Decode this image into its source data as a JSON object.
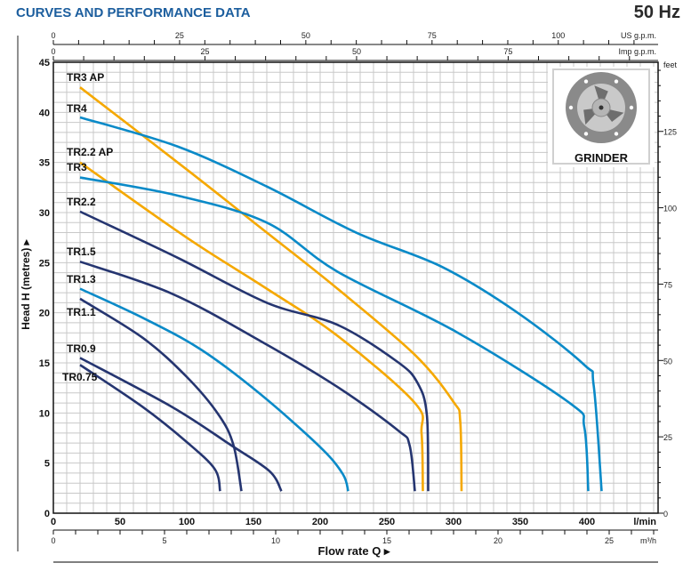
{
  "header": {
    "title": "CURVES AND PERFORMANCE DATA",
    "frequency": "50 Hz"
  },
  "inset": {
    "label": "GRINDER",
    "icon": "grinder-impeller"
  },
  "colors": {
    "navy": "#253570",
    "blue": "#0a8ac8",
    "orange": "#f5a800"
  },
  "chart_data": {
    "type": "line",
    "title": "CURVES AND PERFORMANCE DATA",
    "xlabel": "Flow rate Q",
    "ylabel": "Head H (metres)",
    "xlim": [
      0,
      450
    ],
    "ylim": [
      0,
      45
    ],
    "grid": true,
    "x_unit": "l/min",
    "x_ticks": [
      0,
      50,
      100,
      150,
      200,
      250,
      300,
      350,
      400
    ],
    "y_ticks": [
      0,
      5,
      10,
      15,
      20,
      25,
      30,
      35,
      40,
      45
    ],
    "secondary_axes": {
      "us_gpm": {
        "unit": "US g.p.m.",
        "ticks": [
          0,
          25,
          50,
          75,
          100
        ]
      },
      "imp_gpm": {
        "unit": "Imp g.p.m.",
        "ticks": [
          0,
          25,
          50,
          75
        ]
      },
      "m3h": {
        "unit": "m³/h",
        "ticks": [
          0,
          5,
          10,
          15,
          20,
          25
        ]
      },
      "feet": {
        "unit": "feet",
        "ticks": [
          0,
          25,
          50,
          75,
          100,
          125
        ]
      }
    },
    "series": [
      {
        "name": "TR3 AP",
        "color": "orange",
        "x": [
          20,
          100,
          160,
          213,
          271,
          300,
          305,
          306
        ],
        "y": [
          42.5,
          34.3,
          28.0,
          22.4,
          15.8,
          11.1,
          9.2,
          2.2
        ]
      },
      {
        "name": "TR4",
        "color": "blue",
        "x": [
          20,
          93,
          160,
          227,
          291,
          347,
          398,
          405,
          411
        ],
        "y": [
          39.5,
          36.6,
          32.6,
          28.0,
          24.6,
          20.1,
          14.8,
          12.8,
          2.2
        ]
      },
      {
        "name": "TR2.2 AP",
        "color": "orange",
        "x": [
          20,
          100,
          160,
          213,
          271,
          276,
          277
        ],
        "y": [
          35.0,
          27.5,
          22.4,
          17.7,
          11.0,
          8.0,
          2.2
        ]
      },
      {
        "name": "TR3",
        "color": "blue",
        "x": [
          20,
          93,
          160,
          213,
          302,
          387,
          398,
          401
        ],
        "y": [
          33.5,
          31.7,
          29.0,
          24.1,
          18.1,
          11.0,
          8.6,
          2.2
        ]
      },
      {
        "name": "TR2.2",
        "color": "navy",
        "x": [
          20,
          93,
          160,
          213,
          258,
          273,
          280,
          281
        ],
        "y": [
          30.1,
          25.5,
          21.0,
          18.8,
          15.1,
          13.0,
          9.8,
          2.2
        ]
      },
      {
        "name": "TR1.5",
        "color": "navy",
        "x": [
          20,
          89,
          155,
          213,
          258,
          267,
          271
        ],
        "y": [
          25.1,
          21.9,
          17.2,
          12.6,
          8.3,
          6.8,
          2.2
        ]
      },
      {
        "name": "TR1.3",
        "color": "blue",
        "x": [
          20,
          67,
          111,
          155,
          200,
          217,
          221
        ],
        "y": [
          22.4,
          19.5,
          16.3,
          11.9,
          6.6,
          3.9,
          2.2
        ]
      },
      {
        "name": "TR1.1",
        "color": "navy",
        "x": [
          20,
          67,
          100,
          124,
          135,
          141
        ],
        "y": [
          21.4,
          17.5,
          13.6,
          9.8,
          6.8,
          2.2
        ]
      },
      {
        "name": "TR0.9",
        "color": "navy",
        "x": [
          20,
          89,
          133,
          162,
          171
        ],
        "y": [
          15.5,
          10.6,
          6.8,
          4.2,
          2.2
        ]
      },
      {
        "name": "TR0.75",
        "color": "navy",
        "x": [
          20,
          67,
          100,
          121,
          125
        ],
        "y": [
          14.8,
          10.6,
          7.1,
          4.4,
          2.2
        ]
      }
    ]
  }
}
